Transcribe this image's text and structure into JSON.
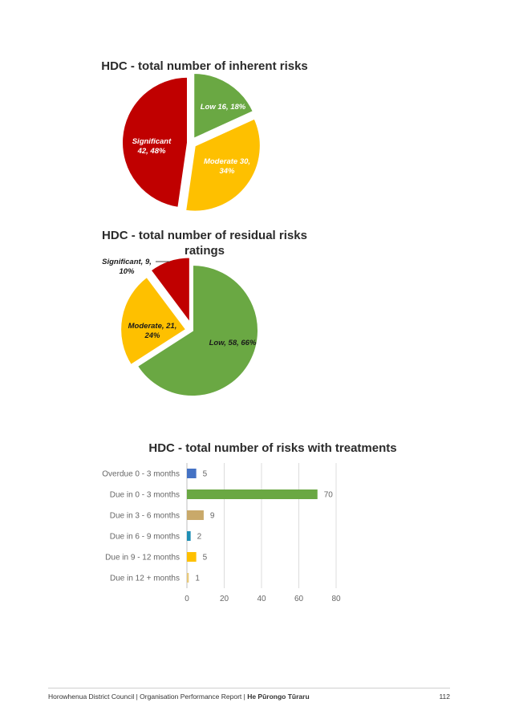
{
  "chart_data": [
    {
      "type": "pie",
      "title": "HDC - total number of inherent risks",
      "slices": [
        {
          "name": "Low",
          "value": 16,
          "percent": "18%",
          "label": "Low 16, 18%",
          "color": "#6aa843"
        },
        {
          "name": "Moderate",
          "value": 30,
          "percent": "34%",
          "label": "Moderate 30, 34%",
          "color": "#fec000"
        },
        {
          "name": "Significant",
          "value": 42,
          "percent": "48%",
          "label": "Significant 42, 48%",
          "color": "#c00000"
        }
      ]
    },
    {
      "type": "pie",
      "title": "HDC - total number of residual risks ratings",
      "title_line1": "HDC - total number of residual risks",
      "title_line2": "ratings",
      "slices": [
        {
          "name": "Low",
          "value": 58,
          "percent": "66%",
          "label": "Low, 58, 66%",
          "color": "#6aa843"
        },
        {
          "name": "Moderate",
          "value": 21,
          "percent": "24%",
          "label": "Moderate, 21, 24%",
          "color": "#fec000"
        },
        {
          "name": "Significant",
          "value": 9,
          "percent": "10%",
          "label": "Significant, 9, 10%",
          "color": "#c00000"
        }
      ]
    },
    {
      "type": "bar",
      "orientation": "horizontal",
      "title": "HDC - total number of risks with treatments",
      "categories": [
        "Overdue 0 - 3 months",
        "Due in 0 - 3 months",
        "Due in 3 - 6 months",
        "Due in 6 - 9 months",
        "Due in 9 - 12 months",
        "Due in 12 + months"
      ],
      "values": [
        5,
        70,
        9,
        2,
        5,
        1
      ],
      "colors": [
        "#4472c4",
        "#6aa843",
        "#c9a96a",
        "#1f8fb5",
        "#fec000",
        "#e8c97a"
      ],
      "xlim": [
        0,
        80
      ],
      "xticks": [
        0,
        20,
        40,
        60,
        80
      ],
      "grid": true
    }
  ],
  "footer": {
    "org": "Horowhenua District Council | Organisation Performance Report | ",
    "report_maori": "He Pūrongo Tūraru",
    "page_number": "112"
  }
}
